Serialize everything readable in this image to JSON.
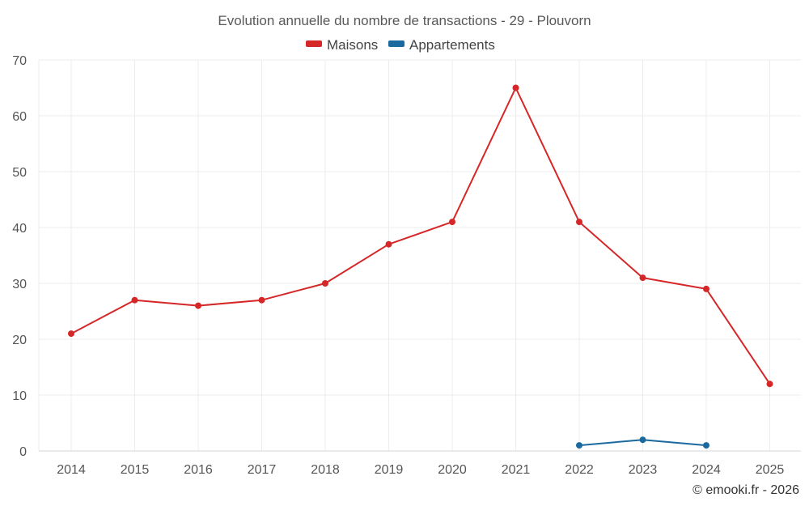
{
  "chart_data": {
    "type": "line",
    "title": "Evolution annuelle du nombre de transactions - 29 - Plouvorn",
    "categories": [
      "2014",
      "2015",
      "2016",
      "2017",
      "2018",
      "2019",
      "2020",
      "2021",
      "2022",
      "2023",
      "2024",
      "2025"
    ],
    "ylim": [
      0,
      70
    ],
    "yticks": [
      0,
      10,
      20,
      30,
      40,
      50,
      60,
      70
    ],
    "grid": true,
    "legend_position": "top-center",
    "series": [
      {
        "name": "Maisons",
        "color": "#d62728",
        "values": [
          21,
          27,
          26,
          27,
          30,
          37,
          41,
          65,
          41,
          31,
          29,
          12
        ]
      },
      {
        "name": "Appartements",
        "color": "#1a6aa0",
        "values": [
          null,
          null,
          null,
          null,
          null,
          null,
          null,
          null,
          1,
          2,
          1,
          null
        ]
      }
    ]
  },
  "credit": "© emooki.fr - 2026"
}
